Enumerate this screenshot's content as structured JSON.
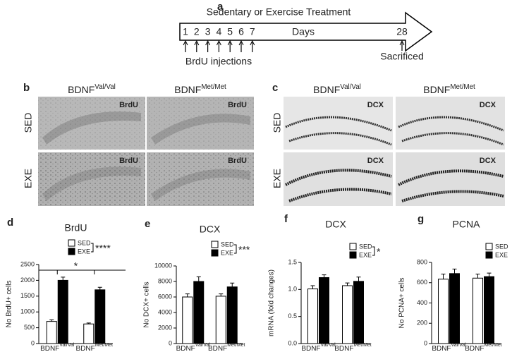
{
  "timeline": {
    "label": "a",
    "title": "Sedentary or Exercise Treatment",
    "days": [
      "1",
      "2",
      "3",
      "4",
      "5",
      "6",
      "7"
    ],
    "days_label": "Days",
    "end_day": "28",
    "injections": "BrdU injections",
    "end_event": "Sacrificed"
  },
  "panel_b": {
    "label": "b",
    "columns": [
      {
        "base": "BDNF",
        "sup": "Val/Val"
      },
      {
        "base": "BDNF",
        "sup": "Met/Met"
      }
    ],
    "rows": [
      "SED",
      "EXE"
    ],
    "stain": "BrdU"
  },
  "panel_c": {
    "label": "c",
    "columns": [
      {
        "base": "BDNF",
        "sup": "Val/Val"
      },
      {
        "base": "BDNF",
        "sup": "Met/Met"
      }
    ],
    "rows": [
      "SED",
      "EXE"
    ],
    "stain": "DCX"
  },
  "chart_data": [
    {
      "type": "bar",
      "label": "d",
      "title": "BrdU",
      "ylabel": "No BrdU+ cells",
      "categories": [
        "BDNF",
        "BDNF"
      ],
      "category_superscripts": [
        "Val/Val",
        "Met/Met"
      ],
      "series": [
        {
          "name": "SED",
          "color": "#ffffff",
          "values": [
            700,
            620
          ],
          "errors": [
            50,
            30
          ]
        },
        {
          "name": "EXE",
          "color": "#000000",
          "values": [
            2000,
            1700
          ],
          "errors": [
            100,
            80
          ]
        }
      ],
      "ylim": [
        0,
        2500
      ],
      "yticks": [
        0,
        500,
        1000,
        1500,
        2000,
        2500
      ],
      "significance": "****",
      "group_significance": "*"
    },
    {
      "type": "bar",
      "label": "e",
      "title": "DCX",
      "ylabel": "No DCX+ cells",
      "categories": [
        "BDNF",
        "BDNF"
      ],
      "category_superscripts": [
        "Val/Val",
        "Met/Met"
      ],
      "series": [
        {
          "name": "SED",
          "color": "#ffffff",
          "values": [
            6000,
            6100
          ],
          "errors": [
            400,
            300
          ]
        },
        {
          "name": "EXE",
          "color": "#000000",
          "values": [
            8000,
            7300
          ],
          "errors": [
            600,
            500
          ]
        }
      ],
      "ylim": [
        0,
        10000
      ],
      "yticks": [
        0,
        2000,
        4000,
        6000,
        8000,
        10000
      ],
      "significance": "***"
    },
    {
      "type": "bar",
      "label": "f",
      "title": "DCX",
      "ylabel": "mRNA (fold changes)",
      "categories": [
        "BDNF",
        "BDNF"
      ],
      "category_superscripts": [
        "Val/Val",
        "Met/Met"
      ],
      "series": [
        {
          "name": "SED",
          "color": "#ffffff",
          "values": [
            1.01,
            1.07
          ],
          "errors": [
            0.06,
            0.05
          ]
        },
        {
          "name": "EXE",
          "color": "#000000",
          "values": [
            1.22,
            1.15
          ],
          "errors": [
            0.05,
            0.08
          ]
        }
      ],
      "ylim": [
        0,
        1.5
      ],
      "yticks": [
        {
          "value": 0,
          "label": "0.0"
        },
        0.5,
        {
          "value": 1,
          "label": "1.0"
        },
        1.5
      ],
      "significance": "*"
    },
    {
      "type": "bar",
      "label": "g",
      "title": "PCNA",
      "ylabel": "No PCNA+ cells",
      "categories": [
        "BDNF",
        "BDNF"
      ],
      "category_superscripts": [
        "Val/Val",
        "Met/Met"
      ],
      "series": [
        {
          "name": "SED",
          "color": "#ffffff",
          "values": [
            635,
            645
          ],
          "errors": [
            50,
            40
          ]
        },
        {
          "name": "EXE",
          "color": "#000000",
          "values": [
            690,
            660
          ],
          "errors": [
            45,
            35
          ]
        }
      ],
      "ylim": [
        0,
        800
      ],
      "yticks": [
        0,
        200,
        400,
        600,
        800
      ]
    }
  ]
}
